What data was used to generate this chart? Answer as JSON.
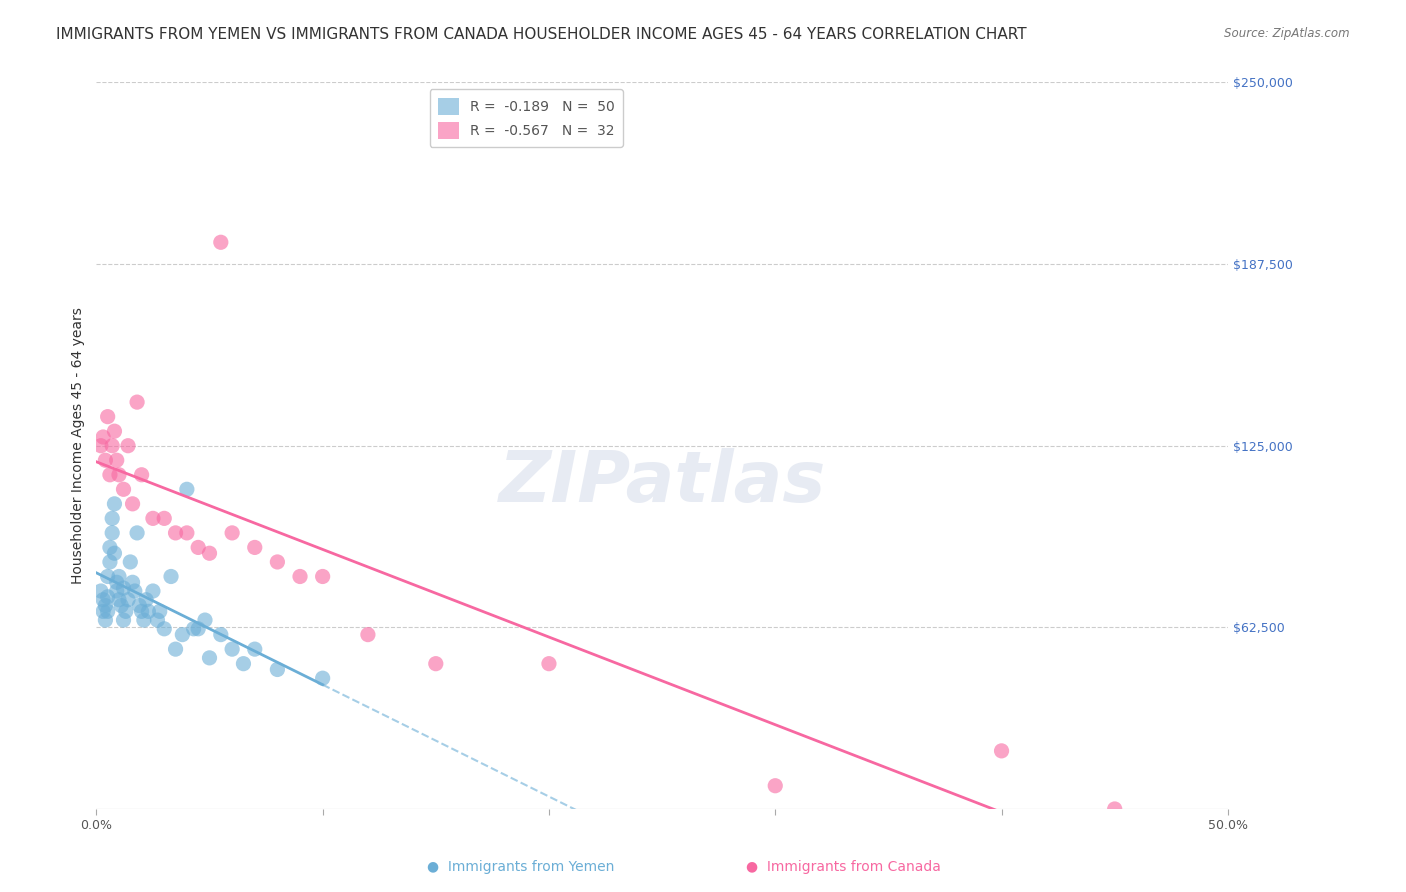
{
  "title": "IMMIGRANTS FROM YEMEN VS IMMIGRANTS FROM CANADA HOUSEHOLDER INCOME AGES 45 - 64 YEARS CORRELATION CHART",
  "source": "Source: ZipAtlas.com",
  "ylabel": "Householder Income Ages 45 - 64 years",
  "xlabel": "",
  "xlim": [
    0.0,
    0.5
  ],
  "ylim": [
    0,
    250000
  ],
  "ytick_labels": [
    "$250,000",
    "$187,500",
    "$125,000",
    "$62,500"
  ],
  "ytick_values": [
    250000,
    187500,
    125000,
    62500
  ],
  "xtick_labels": [
    "0.0%",
    "",
    "",
    "",
    "",
    "50.0%"
  ],
  "xtick_values": [
    0.0,
    0.1,
    0.2,
    0.3,
    0.4,
    0.5
  ],
  "watermark": "ZIPatlas",
  "yemen_color": "#6baed6",
  "canada_color": "#f768a1",
  "yemen_R": -0.189,
  "yemen_N": 50,
  "canada_R": -0.567,
  "canada_N": 32,
  "yemen_x": [
    0.002,
    0.003,
    0.003,
    0.004,
    0.004,
    0.005,
    0.005,
    0.005,
    0.006,
    0.006,
    0.007,
    0.007,
    0.008,
    0.008,
    0.009,
    0.009,
    0.01,
    0.01,
    0.011,
    0.012,
    0.012,
    0.013,
    0.014,
    0.015,
    0.016,
    0.017,
    0.018,
    0.019,
    0.02,
    0.021,
    0.022,
    0.023,
    0.025,
    0.027,
    0.028,
    0.03,
    0.033,
    0.035,
    0.038,
    0.04,
    0.043,
    0.045,
    0.048,
    0.05,
    0.055,
    0.06,
    0.065,
    0.07,
    0.08,
    0.1
  ],
  "yemen_y": [
    75000,
    68000,
    72000,
    65000,
    70000,
    80000,
    73000,
    68000,
    85000,
    90000,
    100000,
    95000,
    105000,
    88000,
    78000,
    75000,
    72000,
    80000,
    70000,
    76000,
    65000,
    68000,
    72000,
    85000,
    78000,
    75000,
    95000,
    70000,
    68000,
    65000,
    72000,
    68000,
    75000,
    65000,
    68000,
    62000,
    80000,
    55000,
    60000,
    110000,
    62000,
    62000,
    65000,
    52000,
    60000,
    55000,
    50000,
    55000,
    48000,
    45000
  ],
  "canada_x": [
    0.002,
    0.003,
    0.004,
    0.005,
    0.006,
    0.007,
    0.008,
    0.009,
    0.01,
    0.012,
    0.014,
    0.016,
    0.018,
    0.02,
    0.025,
    0.03,
    0.035,
    0.04,
    0.045,
    0.05,
    0.055,
    0.06,
    0.07,
    0.08,
    0.09,
    0.1,
    0.12,
    0.15,
    0.2,
    0.3,
    0.4,
    0.45
  ],
  "canada_y": [
    125000,
    128000,
    120000,
    135000,
    115000,
    125000,
    130000,
    120000,
    115000,
    110000,
    125000,
    105000,
    140000,
    115000,
    100000,
    100000,
    95000,
    95000,
    90000,
    88000,
    195000,
    95000,
    90000,
    85000,
    80000,
    80000,
    60000,
    50000,
    50000,
    8000,
    20000,
    0
  ],
  "bg_color": "#ffffff",
  "grid_color": "#cccccc",
  "right_label_color": "#4472c4",
  "title_color": "#333333",
  "title_fontsize": 11,
  "axis_label_fontsize": 10,
  "tick_fontsize": 9
}
